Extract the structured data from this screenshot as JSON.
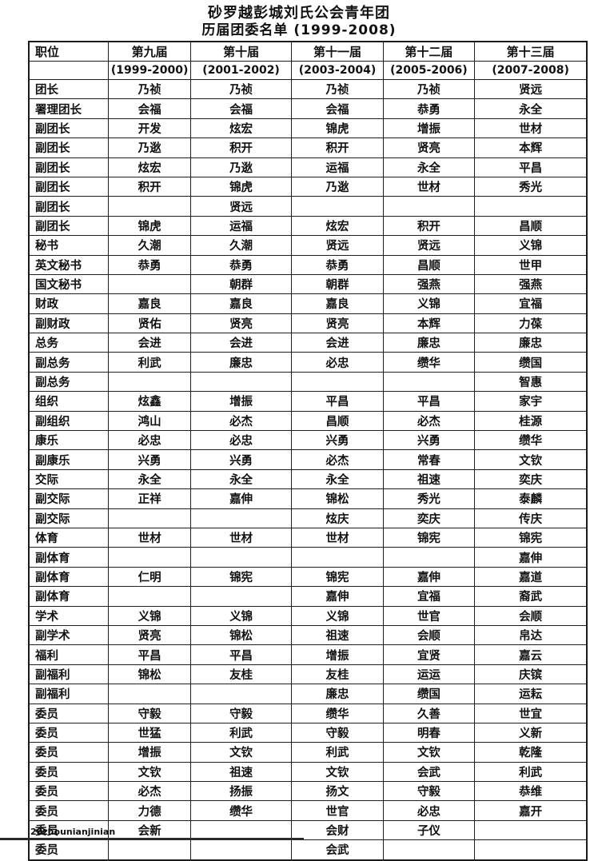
{
  "page": {
    "title_line1": "砂罗越彭城刘氏公会青年团",
    "title_line2": "历届团委名单 (1999-2008)",
    "footer_note": "20zhounianjinian"
  },
  "table": {
    "columns": [
      {
        "label": "职位",
        "sub": ""
      },
      {
        "label": "第九届",
        "sub": "(1999-2000)"
      },
      {
        "label": "第十届",
        "sub": "(2001-2002)"
      },
      {
        "label": "第十一届",
        "sub": "(2003-2004)"
      },
      {
        "label": "第十二届",
        "sub": "(2005-2006)"
      },
      {
        "label": "第十三届",
        "sub": "(2007-2008)"
      }
    ],
    "rows": [
      {
        "position": "团长",
        "values": [
          "乃祯",
          "乃祯",
          "乃祯",
          "乃祯",
          "贤远"
        ]
      },
      {
        "position": "署理团长",
        "values": [
          "会福",
          "会福",
          "会福",
          "恭勇",
          "永全"
        ]
      },
      {
        "position": "副团长",
        "values": [
          "开发",
          "炫宏",
          "锦虎",
          "增振",
          "世材"
        ]
      },
      {
        "position": "副团长",
        "values": [
          "乃逖",
          "积开",
          "积开",
          "贤亮",
          "本辉"
        ]
      },
      {
        "position": "副团长",
        "values": [
          "炫宏",
          "乃逖",
          "运福",
          "永全",
          "平昌"
        ]
      },
      {
        "position": "副团长",
        "values": [
          "积开",
          "锦虎",
          "乃逖",
          "世材",
          "秀光"
        ]
      },
      {
        "position": "副团长",
        "values": [
          "",
          "贤远",
          "",
          "",
          ""
        ]
      },
      {
        "position": "副团长",
        "values": [
          "锦虎",
          "运福",
          "炫宏",
          "积开",
          "昌顺"
        ]
      },
      {
        "position": "秘书",
        "values": [
          "久潮",
          "久潮",
          "贤远",
          "贤远",
          "义锦"
        ]
      },
      {
        "position": "英文秘书",
        "values": [
          "恭勇",
          "恭勇",
          "恭勇",
          "昌顺",
          "世甲"
        ]
      },
      {
        "position": "国文秘书",
        "values": [
          "",
          "朝群",
          "朝群",
          "强燕",
          "强燕"
        ]
      },
      {
        "position": "财政",
        "values": [
          "嘉良",
          "嘉良",
          "嘉良",
          "义锦",
          "宜福"
        ]
      },
      {
        "position": "副财政",
        "values": [
          "贤佑",
          "贤亮",
          "贤亮",
          "本辉",
          "力葆"
        ]
      },
      {
        "position": "总务",
        "values": [
          "会进",
          "会进",
          "会进",
          "廉忠",
          "廉忠"
        ]
      },
      {
        "position": "副总务",
        "values": [
          "利武",
          "廉忠",
          "必忠",
          "缵华",
          "缵国"
        ]
      },
      {
        "position": "副总务",
        "values": [
          "",
          "",
          "",
          "",
          "智惠"
        ]
      },
      {
        "position": "组织",
        "values": [
          "炫鑫",
          "增振",
          "平昌",
          "平昌",
          "家宇"
        ]
      },
      {
        "position": "副组织",
        "values": [
          "鸿山",
          "必杰",
          "昌顺",
          "必杰",
          "桂源"
        ]
      },
      {
        "position": "康乐",
        "values": [
          "必忠",
          "必忠",
          "兴勇",
          "兴勇",
          "缵华"
        ]
      },
      {
        "position": "副康乐",
        "values": [
          "兴勇",
          "兴勇",
          "必杰",
          "常春",
          "文钦"
        ]
      },
      {
        "position": "交际",
        "values": [
          "永全",
          "永全",
          "永全",
          "祖速",
          "奕庆"
        ]
      },
      {
        "position": "副交际",
        "values": [
          "正祥",
          "嘉伸",
          "锦松",
          "秀光",
          "泰麟"
        ]
      },
      {
        "position": "副交际",
        "values": [
          "",
          "",
          "炫庆",
          "奕庆",
          "传庆"
        ]
      },
      {
        "position": "体育",
        "values": [
          "世材",
          "世材",
          "世材",
          "锦宪",
          "锦宪"
        ]
      },
      {
        "position": "副体育",
        "values": [
          "",
          "",
          "",
          "",
          "嘉伸"
        ]
      },
      {
        "position": "副体育",
        "values": [
          "仁明",
          "锦宪",
          "锦宪",
          "嘉伸",
          "嘉道"
        ]
      },
      {
        "position": "副体育",
        "values": [
          "",
          "",
          "嘉伸",
          "宜福",
          "裔武"
        ]
      },
      {
        "position": "学术",
        "values": [
          "义锦",
          "义锦",
          "义锦",
          "世官",
          "会顺"
        ]
      },
      {
        "position": "副学术",
        "values": [
          "贤亮",
          "锦松",
          "祖速",
          "会顺",
          "帛达"
        ]
      },
      {
        "position": "福利",
        "values": [
          "平昌",
          "平昌",
          "增振",
          "宜贤",
          "嘉云"
        ]
      },
      {
        "position": "副福利",
        "values": [
          "锦松",
          "友桂",
          "友桂",
          "运运",
          "庆镔"
        ]
      },
      {
        "position": "副福利",
        "values": [
          "",
          "",
          "廉忠",
          "缵国",
          "运耘"
        ]
      },
      {
        "position": "委员",
        "values": [
          "守毅",
          "守毅",
          "缵华",
          "久善",
          "世宜"
        ]
      },
      {
        "position": "委员",
        "values": [
          "世猛",
          "利武",
          "守毅",
          "明春",
          "义新"
        ]
      },
      {
        "position": "委员",
        "values": [
          "增振",
          "文钦",
          "利武",
          "文钦",
          "乾隆"
        ]
      },
      {
        "position": "委员",
        "values": [
          "文钦",
          "祖速",
          "文钦",
          "会武",
          "利武"
        ]
      },
      {
        "position": "委员",
        "values": [
          "必杰",
          "扬振",
          "扬文",
          "守毅",
          "恭维"
        ]
      },
      {
        "position": "委员",
        "values": [
          "力德",
          "缵华",
          "世官",
          "必忠",
          "嘉开"
        ]
      },
      {
        "position": "委员",
        "values": [
          "会新",
          "",
          "会财",
          "子仪",
          ""
        ]
      },
      {
        "position": "委员",
        "values": [
          "",
          "",
          "会武",
          "",
          ""
        ]
      }
    ]
  }
}
